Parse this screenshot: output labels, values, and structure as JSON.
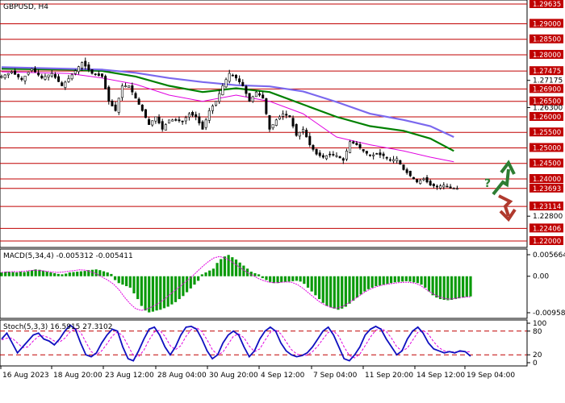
{
  "chart_data": [
    {
      "type": "candlestick",
      "title": "GBPUSD, H4",
      "price_levels": [
        {
          "label": "1.29635",
          "value": 1.29635,
          "highlight": true
        },
        {
          "label": "1.29000",
          "value": 1.29,
          "highlight": true
        },
        {
          "label": "1.28500",
          "value": 1.285,
          "highlight": true
        },
        {
          "label": "1.28000",
          "value": 1.28,
          "highlight": true
        },
        {
          "label": "1.27475",
          "value": 1.27475,
          "highlight": true
        },
        {
          "label": "1.26900",
          "value": 1.269,
          "highlight": true
        },
        {
          "label": "1.26500",
          "value": 1.265,
          "highlight": true
        },
        {
          "label": "1.26000",
          "value": 1.26,
          "highlight": true
        },
        {
          "label": "1.25500",
          "value": 1.255,
          "highlight": true
        },
        {
          "label": "1.25000",
          "value": 1.25,
          "highlight": true
        },
        {
          "label": "1.24500",
          "value": 1.245,
          "highlight": true
        },
        {
          "label": "1.24000",
          "value": 1.24,
          "highlight": true
        },
        {
          "label": "1.23693",
          "value": 1.23693,
          "highlight": true
        },
        {
          "label": "1.23114",
          "value": 1.23114,
          "highlight": true
        },
        {
          "label": "1.22406",
          "value": 1.22406,
          "highlight": true
        },
        {
          "label": "1.22000",
          "value": 1.22,
          "highlight": true
        }
      ],
      "price_ticks": [
        {
          "label": "1.27175",
          "value": 1.27175
        },
        {
          "label": "1.26300",
          "value": 1.263
        },
        {
          "label": "1.22800",
          "value": 1.228
        }
      ],
      "x_labels": [
        "16 Aug 2023",
        "18 Aug 20:00",
        "23 Aug 12:00",
        "28 Aug 04:00",
        "30 Aug 20:00",
        "4 Sep 12:00",
        "7 Sep 04:00",
        "11 Sep 20:00",
        "14 Sep 12:00",
        "19 Sep 04:00"
      ],
      "close_path": [
        [
          0,
          1.273
        ],
        [
          3,
          1.2745
        ],
        [
          6,
          1.272
        ],
        [
          9,
          1.2755
        ],
        [
          12,
          1.2725
        ],
        [
          15,
          1.274
        ],
        [
          18,
          1.27
        ],
        [
          21,
          1.2735
        ],
        [
          24,
          1.2775
        ],
        [
          27,
          1.274
        ],
        [
          30,
          1.273
        ],
        [
          32,
          1.265
        ],
        [
          34,
          1.262
        ],
        [
          36,
          1.27
        ],
        [
          38,
          1.27
        ],
        [
          40,
          1.266
        ],
        [
          42,
          1.262
        ],
        [
          44,
          1.2575
        ],
        [
          46,
          1.26
        ],
        [
          48,
          1.256
        ],
        [
          50,
          1.259
        ],
        [
          52,
          1.259
        ],
        [
          54,
          1.2585
        ],
        [
          56,
          1.261
        ],
        [
          58,
          1.26
        ],
        [
          60,
          1.256
        ],
        [
          62,
          1.262
        ],
        [
          64,
          1.265
        ],
        [
          66,
          1.27
        ],
        [
          68,
          1.274
        ],
        [
          70,
          1.2725
        ],
        [
          72,
          1.27
        ],
        [
          74,
          1.265
        ],
        [
          76,
          1.268
        ],
        [
          78,
          1.266
        ],
        [
          80,
          1.256
        ],
        [
          82,
          1.259
        ],
        [
          84,
          1.261
        ],
        [
          86,
          1.26
        ],
        [
          88,
          1.254
        ],
        [
          90,
          1.256
        ],
        [
          92,
          1.251
        ],
        [
          94,
          1.248
        ],
        [
          96,
          1.247
        ],
        [
          98,
          1.248
        ],
        [
          100,
          1.2475
        ],
        [
          102,
          1.246
        ],
        [
          104,
          1.252
        ],
        [
          106,
          1.251
        ],
        [
          108,
          1.249
        ],
        [
          110,
          1.2475
        ],
        [
          112,
          1.248
        ],
        [
          114,
          1.2475
        ],
        [
          116,
          1.246
        ],
        [
          118,
          1.2465
        ],
        [
          120,
          1.243
        ],
        [
          122,
          1.241
        ],
        [
          124,
          1.239
        ],
        [
          126,
          1.24
        ],
        [
          128,
          1.238
        ],
        [
          130,
          1.2375
        ],
        [
          132,
          1.238
        ],
        [
          134,
          1.237
        ],
        [
          136,
          1.23693
        ]
      ],
      "ma_series": [
        {
          "color": "#e000e0",
          "points": [
            [
              0,
              1.2745
            ],
            [
              20,
              1.274
            ],
            [
              30,
              1.2725
            ],
            [
              40,
              1.2705
            ],
            [
              50,
              1.267
            ],
            [
              60,
              1.265
            ],
            [
              70,
              1.267
            ],
            [
              80,
              1.265
            ],
            [
              90,
              1.261
            ],
            [
              100,
              1.2535
            ],
            [
              110,
              1.251
            ],
            [
              120,
              1.249
            ],
            [
              128,
              1.247
            ],
            [
              135,
              1.2455
            ]
          ]
        },
        {
          "color": "#008000",
          "points": [
            [
              0,
              1.2755
            ],
            [
              20,
              1.2752
            ],
            [
              30,
              1.2748
            ],
            [
              40,
              1.273
            ],
            [
              50,
              1.27
            ],
            [
              60,
              1.268
            ],
            [
              70,
              1.2692
            ],
            [
              80,
              1.268
            ],
            [
              90,
              1.264
            ],
            [
              100,
              1.26
            ],
            [
              110,
              1.257
            ],
            [
              120,
              1.2555
            ],
            [
              128,
              1.253
            ],
            [
              135,
              1.249
            ]
          ]
        },
        {
          "color": "#7b68ee",
          "points": [
            [
              0,
              1.276
            ],
            [
              20,
              1.2755
            ],
            [
              30,
              1.2752
            ],
            [
              40,
              1.2742
            ],
            [
              50,
              1.2725
            ],
            [
              60,
              1.2712
            ],
            [
              70,
              1.2702
            ],
            [
              80,
              1.2698
            ],
            [
              90,
              1.2682
            ],
            [
              100,
              1.2648
            ],
            [
              110,
              1.261
            ],
            [
              120,
              1.259
            ],
            [
              128,
              1.257
            ],
            [
              135,
              1.2535
            ]
          ]
        }
      ],
      "scenario_up_color": "#2e7d32",
      "scenario_down_color": "#b03a2e"
    },
    {
      "type": "bar",
      "title": "MACD(5,34,4) -0.005312 -0.005411",
      "y_ticks": [
        {
          "label": "0.005664",
          "value": 0.005664
        },
        {
          "label": "0.00",
          "value": 0.0
        },
        {
          "label": "-0.009587",
          "value": -0.009587
        }
      ],
      "histogram": [
        0.001,
        0.0012,
        0.0012,
        0.0011,
        0.001,
        0.0012,
        0.0011,
        0.0013,
        0.0016,
        0.0018,
        0.0017,
        0.0015,
        0.0012,
        0.001,
        0.0008,
        0.0006,
        0.0005,
        0.0007,
        0.001,
        0.0011,
        0.0012,
        0.0013,
        0.0014,
        0.0016,
        0.0017,
        0.0018,
        0.0016,
        0.0013,
        0.001,
        0.0006,
        -0.001,
        -0.0018,
        -0.0022,
        -0.0026,
        -0.003,
        -0.0045,
        -0.006,
        -0.0078,
        -0.009,
        -0.0095,
        -0.0093,
        -0.009,
        -0.0088,
        -0.0084,
        -0.008,
        -0.0074,
        -0.0068,
        -0.006,
        -0.0052,
        -0.0042,
        -0.0032,
        -0.0022,
        -0.0012,
        0.0005,
        0.001,
        0.0015,
        0.002,
        0.0035,
        0.0045,
        0.0052,
        0.0056,
        0.005,
        0.0044,
        0.0036,
        0.0028,
        0.002,
        0.0012,
        0.0008,
        0.0005,
        -0.0005,
        -0.001,
        -0.0015,
        -0.0018,
        -0.0018,
        -0.0016,
        -0.0015,
        -0.0014,
        -0.0013,
        -0.0012,
        -0.0014,
        -0.002,
        -0.003,
        -0.004,
        -0.005,
        -0.006,
        -0.007,
        -0.0078,
        -0.0082,
        -0.0085,
        -0.0088,
        -0.0085,
        -0.008,
        -0.0072,
        -0.0064,
        -0.0056,
        -0.0048,
        -0.004,
        -0.0034,
        -0.003,
        -0.0026,
        -0.0024,
        -0.0022,
        -0.002,
        -0.0018,
        -0.0016,
        -0.0015,
        -0.0014,
        -0.0013,
        -0.0014,
        -0.0016,
        -0.0018,
        -0.0022,
        -0.003,
        -0.004,
        -0.005,
        -0.0056,
        -0.006,
        -0.0062,
        -0.0063,
        -0.0062,
        -0.006,
        -0.0058,
        -0.0056,
        -0.0054,
        -0.0053
      ],
      "signal": [
        0.001,
        0.0011,
        0.0012,
        0.0012,
        0.0013,
        0.0015,
        0.0016,
        0.0015,
        0.0013,
        0.0011,
        0.001,
        0.0011,
        0.0013,
        0.0015,
        0.0017,
        0.0016,
        0.0012,
        0.0006,
        -0.0002,
        -0.001,
        -0.002,
        -0.0035,
        -0.0055,
        -0.0072,
        -0.0085,
        -0.009,
        -0.0086,
        -0.008,
        -0.0072,
        -0.0062,
        -0.005,
        -0.0038,
        -0.0026,
        -0.0014,
        -0.0002,
        0.0012,
        0.0026,
        0.0038,
        0.0048,
        0.0052,
        0.0048,
        0.004,
        0.003,
        0.002,
        0.001,
        0.0002,
        -0.0006,
        -0.0012,
        -0.0016,
        -0.0017,
        -0.0016,
        -0.0015,
        -0.0016,
        -0.0022,
        -0.0032,
        -0.0044,
        -0.0056,
        -0.0068,
        -0.0076,
        -0.0082,
        -0.0084,
        -0.008,
        -0.0072,
        -0.0062,
        -0.0052,
        -0.0042,
        -0.0034,
        -0.0028,
        -0.0024,
        -0.0021,
        -0.0019,
        -0.0017,
        -0.0016,
        -0.0016,
        -0.0018,
        -0.0024,
        -0.0034,
        -0.0044,
        -0.0052,
        -0.0057,
        -0.006,
        -0.0059,
        -0.0056,
        -0.0055,
        -0.0054
      ]
    },
    {
      "type": "line",
      "title": "Stoch(5,3,3) 16.5915 27.3102",
      "y_ticks": [
        {
          "label": "100",
          "value": 100
        },
        {
          "label": "80",
          "value": 80
        },
        {
          "label": "20",
          "value": 20
        },
        {
          "label": "0",
          "value": 0
        }
      ],
      "ylim": [
        0,
        100
      ],
      "main": [
        60,
        75,
        50,
        25,
        40,
        55,
        70,
        75,
        60,
        55,
        45,
        60,
        80,
        95,
        85,
        50,
        20,
        15,
        25,
        50,
        70,
        85,
        80,
        40,
        10,
        5,
        30,
        60,
        85,
        90,
        70,
        40,
        20,
        40,
        70,
        90,
        92,
        85,
        60,
        30,
        10,
        20,
        50,
        70,
        80,
        70,
        40,
        15,
        30,
        60,
        80,
        90,
        80,
        50,
        30,
        20,
        15,
        18,
        25,
        40,
        60,
        80,
        90,
        70,
        40,
        10,
        5,
        20,
        40,
        70,
        85,
        92,
        85,
        60,
        40,
        20,
        30,
        60,
        80,
        90,
        75,
        50,
        35,
        30,
        25,
        28,
        25,
        30,
        28,
        16.6
      ],
      "signal": [
        58,
        62,
        62,
        50,
        38,
        40,
        55,
        67,
        68,
        63,
        55,
        52,
        62,
        78,
        87,
        77,
        52,
        28,
        20,
        30,
        48,
        68,
        78,
        68,
        43,
        18,
        15,
        32,
        58,
        78,
        82,
        67,
        43,
        33,
        43,
        67,
        84,
        89,
        79,
        58,
        33,
        20,
        27,
        47,
        67,
        73,
        63,
        42,
        28,
        35,
        57,
        77,
        83,
        73,
        53,
        33,
        22,
        18,
        19,
        28,
        42,
        60,
        77,
        80,
        67,
        40,
        18,
        12,
        22,
        43,
        65,
        82,
        87,
        79,
        62,
        40,
        30,
        37,
        57,
        77,
        82,
        72,
        53,
        38,
        30,
        28,
        27,
        28,
        28,
        27.3
      ]
    }
  ]
}
